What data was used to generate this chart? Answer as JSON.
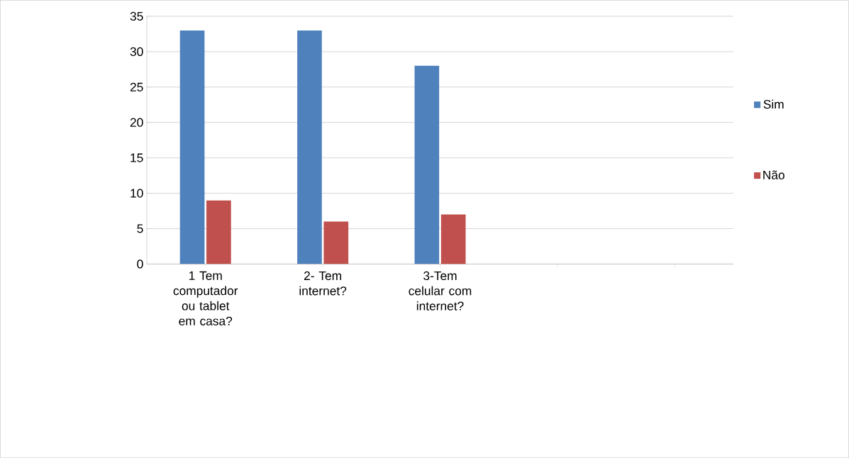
{
  "chart_data": {
    "type": "bar",
    "categories": [
      "1 Tem computador ou tablet em casa?",
      "2- Tem internet?",
      "3-Tem celular com internet?",
      null,
      null
    ],
    "series": [
      {
        "name": "Sim",
        "color": "#4f81bd",
        "values": [
          33,
          33,
          28,
          null,
          null
        ]
      },
      {
        "name": "Não",
        "color": "#c0504d",
        "values": [
          9,
          6,
          7,
          null,
          null
        ]
      }
    ],
    "ylim": [
      0,
      35
    ],
    "yticks": [
      0,
      5,
      10,
      15,
      20,
      25,
      30,
      35
    ],
    "grid": "y",
    "legend": "right"
  }
}
